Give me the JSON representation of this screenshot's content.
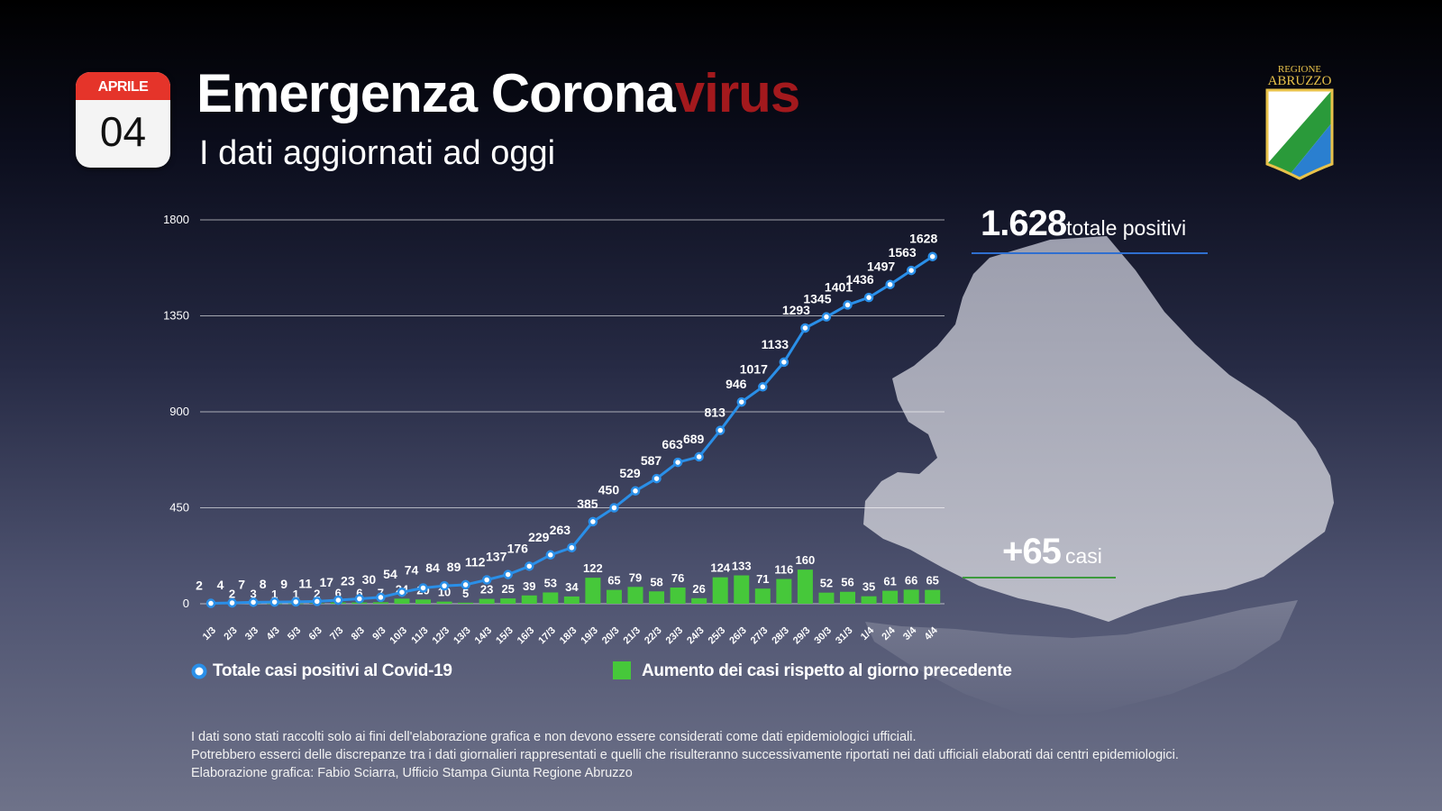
{
  "calendar": {
    "month": "APRILE",
    "day": "04"
  },
  "header": {
    "title_main": "Emergenza Corona",
    "title_accent": "virus",
    "subtitle": "I dati aggiornati ad oggi"
  },
  "logo": {
    "line1": "REGIONE",
    "line2": "ABRUZZO"
  },
  "stats": {
    "total_value": "1.628",
    "total_label": "totale positivi",
    "increase_value": "+65",
    "increase_label": "casi"
  },
  "legend": {
    "line_label": "Totale casi positivi al Covid-19",
    "bar_label": "Aumento dei casi rispetto al giorno precedente"
  },
  "disclaimer": [
    "I dati sono stati raccolti solo ai fini dell'elaborazione grafica e non devono essere considerati come dati epidemiologici ufficiali.",
    "Potrebbero esserci delle discrepanze tra i dati giornalieri rappresentati e quelli che risulteranno successivamente riportati nei dati ufficiali elaborati dai centri epidemiologici.",
    "Elaborazione grafica: Fabio Sciarra, Ufficio Stampa Giunta Regione Abruzzo"
  ],
  "colors": {
    "line": "#2a8fe8",
    "bar": "#46c83a",
    "accent": "#a3191d",
    "calendar_header": "#e5342a"
  },
  "chart_data": {
    "type": "bar",
    "categories": [
      "1/3",
      "2/3",
      "3/3",
      "4/3",
      "5/3",
      "6/3",
      "7/3",
      "8/3",
      "9/3",
      "10/3",
      "11/3",
      "12/3",
      "13/3",
      "14/3",
      "15/3",
      "16/3",
      "17/3",
      "18/3",
      "19/3",
      "20/3",
      "21/3",
      "22/3",
      "23/3",
      "24/3",
      "25/3",
      "26/3",
      "27/3",
      "28/3",
      "29/3",
      "30/3",
      "31/3",
      "1/4",
      "2/4",
      "3/4",
      "4/4"
    ],
    "series": [
      {
        "name": "Totale casi positivi al Covid-19",
        "kind": "line",
        "values": [
          2,
          4,
          7,
          8,
          9,
          11,
          17,
          23,
          30,
          54,
          74,
          84,
          89,
          112,
          137,
          176,
          229,
          263,
          385,
          450,
          529,
          587,
          663,
          689,
          813,
          946,
          1017,
          1133,
          1293,
          1345,
          1401,
          1436,
          1497,
          1563,
          1628
        ]
      },
      {
        "name": "Aumento dei casi rispetto al giorno precedente",
        "kind": "bar",
        "values": [
          null,
          2,
          3,
          1,
          1,
          2,
          6,
          6,
          7,
          24,
          20,
          10,
          5,
          23,
          25,
          39,
          53,
          34,
          122,
          65,
          79,
          58,
          76,
          26,
          124,
          133,
          71,
          116,
          160,
          52,
          56,
          35,
          61,
          66,
          65
        ]
      }
    ],
    "ylim": [
      0,
      1800
    ],
    "yticks": [
      0,
      450,
      900,
      1350,
      1800
    ],
    "grid": true,
    "legend_position": "bottom"
  }
}
